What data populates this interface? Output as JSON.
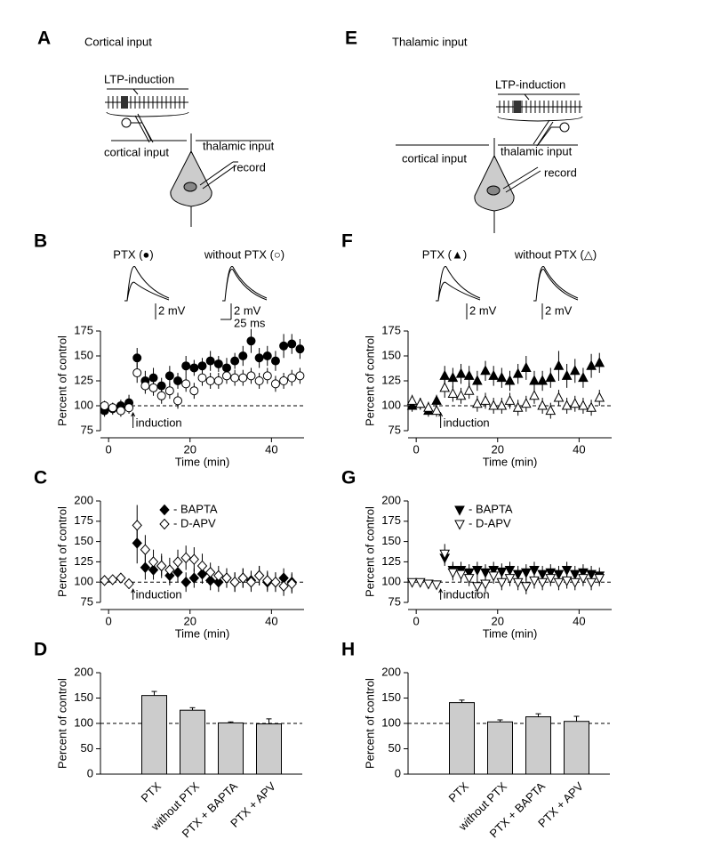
{
  "diagrams": [
    {
      "label": "A",
      "title": "Cortical input",
      "stimulus": "LTP-induction",
      "cortical": "cortical input",
      "thalamic": "thalamic input",
      "record": "record"
    },
    {
      "label": "E",
      "title": "Thalamic input",
      "stimulus": "LTP-induction",
      "cortical": "cortical input",
      "thalamic": "thalamic input",
      "record": "record"
    }
  ],
  "chart_data": [
    {
      "type": "scatter",
      "panel": "B",
      "ylabel": "Percent of control",
      "xlabel": "Time (min)",
      "xlim": [
        -2,
        48
      ],
      "ylim": [
        75,
        175
      ],
      "xticks": [
        0,
        20,
        40
      ],
      "yticks": [
        75,
        100,
        125,
        150,
        175
      ],
      "reference": 100,
      "annotation": {
        "text": "induction",
        "x": 6
      },
      "trace_labels": [
        "PTX (●)",
        "without PTX (○)"
      ],
      "scale_labels": [
        "2 mV",
        "2 mV",
        "25 ms"
      ],
      "x": [
        -1,
        1,
        3,
        5,
        7,
        9,
        11,
        13,
        15,
        17,
        19,
        21,
        23,
        25,
        27,
        29,
        31,
        33,
        35,
        37,
        39,
        41,
        43,
        45,
        47
      ],
      "series": [
        {
          "marker": "circle",
          "color": "#000000",
          "fill": "#000000",
          "values": [
            95,
            97,
            100,
            103,
            148,
            125,
            128,
            120,
            130,
            125,
            140,
            138,
            140,
            145,
            142,
            138,
            145,
            150,
            165,
            148,
            150,
            145,
            160,
            162,
            157
          ],
          "errors": [
            6,
            6,
            6,
            8,
            10,
            10,
            10,
            8,
            10,
            8,
            10,
            8,
            8,
            10,
            8,
            10,
            8,
            10,
            12,
            10,
            10,
            10,
            12,
            10,
            10
          ]
        },
        {
          "marker": "circle",
          "color": "#000000",
          "fill": "#ffffff",
          "values": [
            100,
            98,
            95,
            98,
            133,
            120,
            118,
            110,
            115,
            105,
            122,
            115,
            128,
            125,
            125,
            130,
            128,
            128,
            130,
            125,
            130,
            122,
            125,
            128,
            130
          ],
          "errors": [
            5,
            5,
            6,
            6,
            10,
            8,
            8,
            8,
            8,
            8,
            8,
            8,
            8,
            8,
            8,
            8,
            8,
            8,
            8,
            8,
            8,
            8,
            8,
            8,
            8
          ]
        }
      ]
    },
    {
      "type": "scatter",
      "panel": "C",
      "ylabel": "Percent of control",
      "xlabel": "Time (min)",
      "xlim": [
        -2,
        48
      ],
      "ylim": [
        75,
        200
      ],
      "xticks": [
        0,
        20,
        40
      ],
      "yticks": [
        75,
        100,
        125,
        150,
        175,
        200
      ],
      "reference": 100,
      "annotation": {
        "text": "induction",
        "x": 6
      },
      "x": [
        -1,
        1,
        3,
        5,
        7,
        9,
        11,
        13,
        15,
        17,
        19,
        21,
        23,
        25,
        27,
        29,
        31,
        33,
        35,
        37,
        39,
        41,
        43,
        45
      ],
      "series": [
        {
          "name": "- BAPTA",
          "marker": "diamond",
          "color": "#000000",
          "fill": "#000000",
          "values": [
            null,
            null,
            null,
            null,
            148,
            118,
            115,
            120,
            108,
            112,
            100,
            105,
            110,
            102,
            100,
            105,
            100,
            105,
            102,
            108,
            100,
            100,
            105,
            100
          ],
          "errors": [
            null,
            null,
            null,
            null,
            25,
            15,
            12,
            12,
            12,
            12,
            12,
            12,
            12,
            12,
            12,
            12,
            12,
            12,
            12,
            12,
            12,
            12,
            12,
            12
          ]
        },
        {
          "name": "- D-APV",
          "marker": "diamond",
          "color": "#000000",
          "fill": "#ffffff",
          "values": [
            102,
            103,
            105,
            98,
            170,
            140,
            125,
            120,
            115,
            125,
            130,
            128,
            120,
            112,
            108,
            105,
            100,
            105,
            100,
            108,
            102,
            100,
            95,
            98
          ],
          "errors": [
            4,
            4,
            5,
            6,
            25,
            18,
            15,
            15,
            15,
            15,
            15,
            15,
            15,
            12,
            12,
            12,
            12,
            12,
            12,
            12,
            12,
            12,
            12,
            12
          ]
        }
      ]
    },
    {
      "type": "bar",
      "panel": "D",
      "ylabel": "Percent of control",
      "ylim": [
        0,
        200
      ],
      "yticks": [
        0,
        50,
        100,
        150,
        200
      ],
      "reference": 100,
      "color": "#cccccc",
      "categories": [
        "PTX",
        "without PTX",
        "PTX + BAPTA",
        "PTX + APV"
      ],
      "values": [
        155,
        126,
        101,
        99
      ],
      "errors": [
        8,
        5,
        2,
        10
      ]
    },
    {
      "type": "scatter",
      "panel": "F",
      "ylabel": "Percent of control",
      "xlabel": "Time (min)",
      "xlim": [
        -2,
        48
      ],
      "ylim": [
        75,
        175
      ],
      "xticks": [
        0,
        20,
        40
      ],
      "yticks": [
        75,
        100,
        125,
        150,
        175
      ],
      "reference": 100,
      "annotation": {
        "text": "induction",
        "x": 6
      },
      "trace_labels": [
        "PTX (▲)",
        "without PTX (△)"
      ],
      "scale_labels": [
        "2 mV",
        "2 mV"
      ],
      "x": [
        -1,
        1,
        3,
        5,
        7,
        9,
        11,
        13,
        15,
        17,
        19,
        21,
        23,
        25,
        27,
        29,
        31,
        33,
        35,
        37,
        39,
        41,
        43,
        45
      ],
      "series": [
        {
          "marker": "triangle",
          "color": "#000000",
          "fill": "#000000",
          "values": [
            100,
            102,
            95,
            105,
            130,
            128,
            132,
            130,
            125,
            135,
            130,
            128,
            125,
            132,
            138,
            125,
            125,
            128,
            140,
            130,
            135,
            128,
            140,
            143
          ],
          "errors": [
            6,
            6,
            6,
            6,
            10,
            10,
            10,
            10,
            10,
            10,
            10,
            10,
            10,
            10,
            12,
            10,
            10,
            10,
            15,
            12,
            12,
            10,
            12,
            10
          ]
        },
        {
          "marker": "triangle",
          "color": "#000000",
          "fill": "#ffffff",
          "values": [
            105,
            102,
            98,
            95,
            118,
            112,
            110,
            115,
            102,
            105,
            100,
            100,
            105,
            98,
            102,
            110,
            100,
            95,
            108,
            100,
            102,
            100,
            98,
            108
          ],
          "errors": [
            6,
            6,
            6,
            6,
            10,
            8,
            8,
            8,
            8,
            8,
            8,
            8,
            8,
            8,
            8,
            8,
            8,
            8,
            8,
            8,
            8,
            8,
            8,
            8
          ]
        }
      ]
    },
    {
      "type": "scatter",
      "panel": "G",
      "ylabel": "Percent of control",
      "xlabel": "Time (min)",
      "xlim": [
        -2,
        48
      ],
      "ylim": [
        75,
        200
      ],
      "xticks": [
        0,
        20,
        40
      ],
      "yticks": [
        75,
        100,
        125,
        150,
        175,
        200
      ],
      "reference": 100,
      "annotation": {
        "text": "induction",
        "x": 6
      },
      "x": [
        -1,
        1,
        3,
        5,
        7,
        9,
        11,
        13,
        15,
        17,
        19,
        21,
        23,
        25,
        27,
        29,
        31,
        33,
        35,
        37,
        39,
        41,
        43,
        45
      ],
      "series": [
        {
          "name": "- BAPTA",
          "marker": "triangle-down",
          "color": "#000000",
          "fill": "#000000",
          "values": [
            null,
            null,
            null,
            null,
            130,
            115,
            115,
            112,
            115,
            112,
            115,
            113,
            115,
            110,
            112,
            115,
            110,
            112,
            110,
            115,
            110,
            112,
            110,
            108
          ],
          "errors": [
            null,
            null,
            null,
            null,
            10,
            10,
            10,
            10,
            10,
            10,
            10,
            10,
            10,
            10,
            10,
            10,
            10,
            10,
            10,
            10,
            10,
            10,
            10,
            10
          ]
        },
        {
          "name": "- D-APV",
          "marker": "triangle-down",
          "color": "#000000",
          "fill": "#ffffff",
          "values": [
            100,
            100,
            98,
            97,
            135,
            112,
            110,
            105,
            95,
            98,
            108,
            100,
            105,
            100,
            95,
            102,
            100,
            105,
            100,
            102,
            100,
            105,
            100,
            105
          ],
          "errors": [
            4,
            4,
            4,
            5,
            12,
            10,
            10,
            10,
            10,
            10,
            10,
            10,
            10,
            10,
            10,
            10,
            10,
            10,
            10,
            10,
            10,
            10,
            10,
            10
          ]
        }
      ]
    },
    {
      "type": "bar",
      "panel": "H",
      "ylabel": "Percent of control",
      "ylim": [
        0,
        200
      ],
      "yticks": [
        0,
        50,
        100,
        150,
        200
      ],
      "reference": 100,
      "color": "#cccccc",
      "categories": [
        "PTX",
        "without PTX",
        "PTX + BAPTA",
        "PTX + APV"
      ],
      "values": [
        141,
        103,
        113,
        104
      ],
      "errors": [
        5,
        4,
        6,
        10
      ]
    }
  ]
}
